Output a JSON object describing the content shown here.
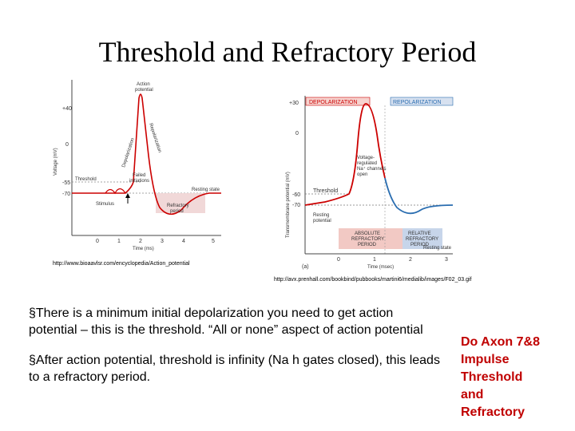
{
  "title": "Threshold and Refractory Period",
  "left_figure": {
    "y_axis_label": "Voltage (mV)",
    "y_ticks": [
      "+40",
      "0",
      "-55",
      "-70"
    ],
    "x_axis_label": "Time (ms)",
    "x_ticks": [
      "0",
      "1",
      "2",
      "3",
      "4",
      "5"
    ],
    "labels": {
      "action_potential_1": "Action",
      "action_potential_2": "potential",
      "depolarization": "Depolarization",
      "repolarization": "Repolarization",
      "threshold": "Threshold",
      "failed_1": "Failed",
      "failed_2": "initiations",
      "resting_state": "Resting state",
      "stimulus": "Stimulus",
      "refractory_1": "Refractory",
      "refractory_2": "period"
    },
    "source_url": "http://www.bioaavlsr.com/encyclopedia/Action_potential"
  },
  "right_figure": {
    "y_axis_label": "Transmembrane potential (mV)",
    "y_ticks": [
      "+30",
      "0",
      "-60",
      "-70"
    ],
    "x_axis_label": "Time (msec)",
    "x_ticks": [
      "0",
      "1",
      "2",
      "3"
    ],
    "labels": {
      "depolarization": "DEPOLARIZATION",
      "repolarization": "REPOLARIZATION",
      "voltage_gated_1": "Voltage-",
      "voltage_gated_2": "regulated",
      "voltage_gated_3": "Na⁺ channels",
      "voltage_gated_4": "open",
      "threshold": "Threshold",
      "resting_1": "Resting",
      "resting_2": "potential",
      "absolute_1": "ABSOLUTE",
      "absolute_2": "REFRACTORY",
      "absolute_3": "PERIOD",
      "relative_1": "RELATIVE",
      "relative_2": "REFRACTORY",
      "relative_3": "PERIOD",
      "resting_state": "Resting state",
      "panel": "(a)"
    },
    "source_url": "http://avx.prenhall.com/bookbind/pubbooks/martini6/medialib/images/F02_03.gif"
  },
  "bullets": [
    "§There is a minimum initial depolarization you need to get action potential – this is the threshold.  “All or none” aspect of action potential",
    "§After action potential, threshold is infinity (Na h gates closed), this leads to a refractory period."
  ],
  "side_note": [
    "Do Axon 7&8",
    "Impulse",
    "Threshold",
    "and",
    "Refractory"
  ],
  "colors": {
    "curve_red": "#cc0000",
    "curve_blue": "#2a6db0",
    "side_note": "#c00000",
    "absolute_box": "#f2c9c4",
    "relative_box": "#c7d5ea"
  }
}
